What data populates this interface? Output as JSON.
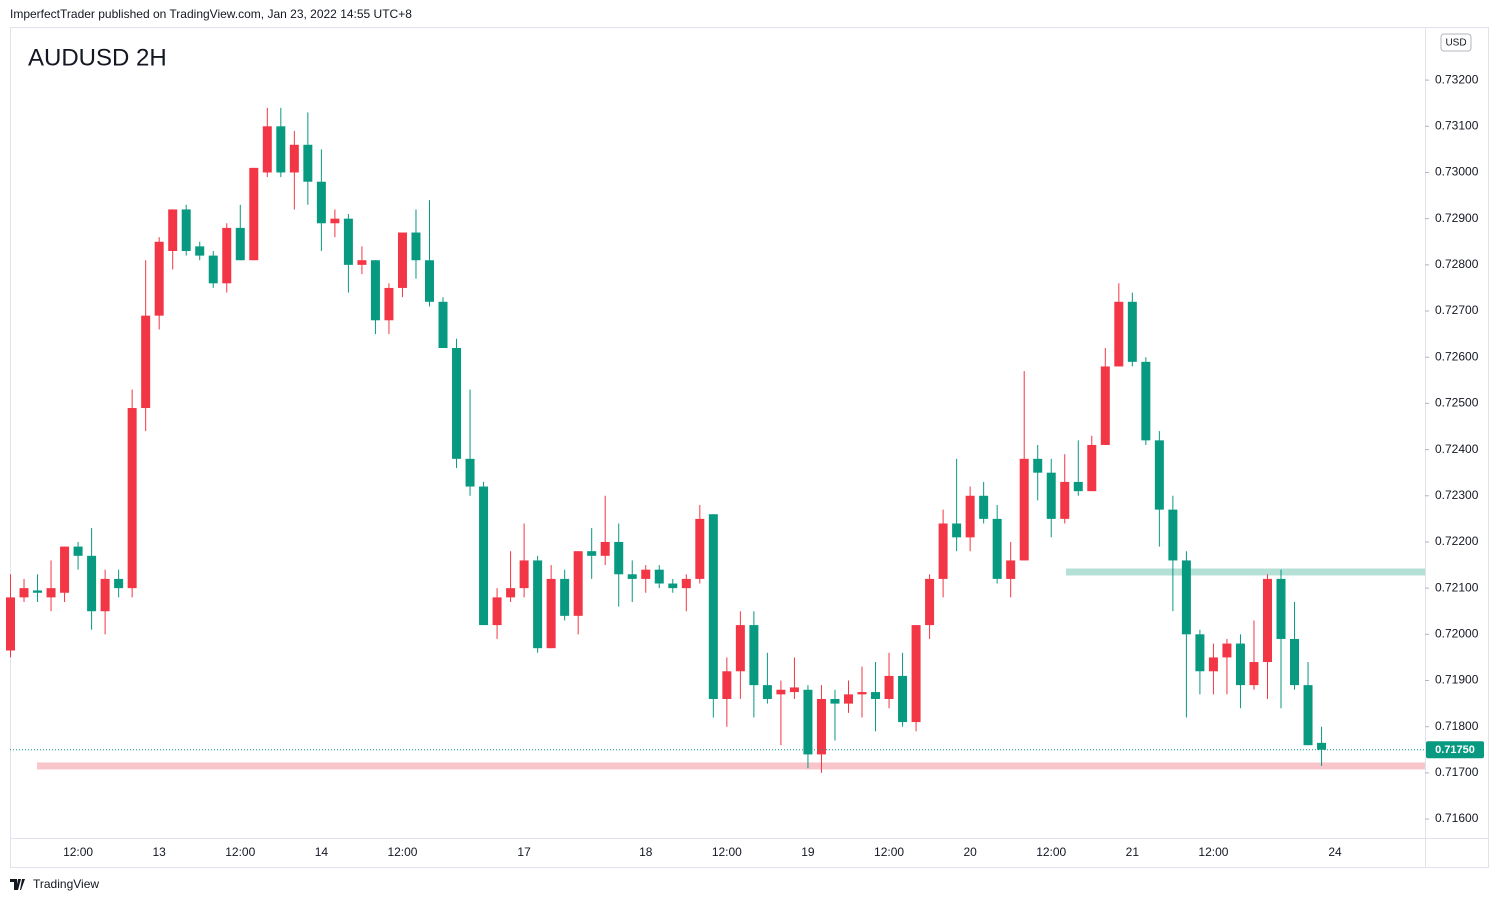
{
  "header": "ImperfectTrader published on TradingView.com, Jan 23, 2022 14:55 UTC+8",
  "brand": "TradingView",
  "chart_data": {
    "type": "candlestick",
    "title": "AUDUSD 2H",
    "currency": "USD",
    "up_color": "#f23645",
    "down_color": "#089981",
    "categories": [
      null,
      null,
      null,
      null,
      null,
      "12:00",
      null,
      null,
      null,
      null,
      null,
      "13",
      null,
      null,
      null,
      null,
      null,
      "12:00",
      null,
      null,
      null,
      null,
      null,
      "14",
      null,
      null,
      null,
      null,
      null,
      "12:00",
      null,
      null,
      null,
      null,
      null,
      null,
      null,
      null,
      "17",
      null,
      null,
      null,
      null,
      null,
      null,
      null,
      null,
      "18",
      null,
      null,
      null,
      null,
      null,
      "12:00",
      null,
      null,
      null,
      null,
      null,
      "19",
      null,
      null,
      null,
      null,
      null,
      "12:00",
      null,
      null,
      null,
      null,
      null,
      "20",
      null,
      null,
      null,
      null,
      null,
      "12:00",
      null,
      null,
      null,
      null,
      null,
      "21",
      null,
      null,
      null,
      null,
      null,
      "12:00",
      null,
      null,
      null,
      null,
      null,
      null,
      null,
      null,
      "24"
    ],
    "open": [
      0.71965,
      0.7208,
      0.72095,
      0.7208,
      0.7209,
      0.7219,
      0.7217,
      0.7205,
      0.7212,
      0.721,
      0.7249,
      0.7269,
      0.7283,
      0.7292,
      0.7284,
      0.7282,
      0.7276,
      0.7288,
      0.7281,
      0.73,
      0.731,
      0.73,
      0.7306,
      0.7298,
      0.7289,
      0.729,
      0.728,
      0.7281,
      0.7268,
      0.7275,
      0.7287,
      0.7281,
      0.7272,
      0.7262,
      0.7238,
      0.7232,
      0.7202,
      0.7208,
      0.721,
      0.7216,
      0.7197,
      0.7212,
      0.7204,
      0.7218,
      0.7217,
      0.722,
      0.7213,
      0.7212,
      0.7214,
      0.7211,
      0.721,
      0.7212,
      0.7226,
      0.7186,
      0.7192,
      0.7202,
      0.7189,
      0.7187,
      0.71875,
      0.7188,
      0.7174,
      0.7186,
      0.7185,
      0.7187,
      0.71875,
      0.7186,
      0.7191,
      0.7181,
      0.7202,
      0.7212,
      0.7224,
      0.7221,
      0.723,
      0.7225,
      0.7212,
      0.7216,
      0.7238,
      0.7235,
      0.7225,
      0.7233,
      0.7231,
      0.7241,
      0.7258,
      0.7272,
      0.7259,
      0.7242,
      0.7227,
      0.7216,
      0.72,
      0.7192,
      0.7195,
      0.7198,
      0.7189,
      0.7194,
      0.7212,
      0.7199,
      0.7189,
      0.71765,
      null
    ],
    "high": [
      0.7213,
      0.7212,
      0.7213,
      0.7216,
      0.7219,
      0.722,
      0.7223,
      0.7214,
      0.7214,
      0.7253,
      0.7281,
      0.7286,
      0.7292,
      0.7293,
      0.7285,
      0.7283,
      0.7289,
      0.7293,
      0.7301,
      0.7314,
      0.7314,
      0.7309,
      0.7313,
      0.7305,
      0.7292,
      0.7291,
      0.7284,
      0.7281,
      0.7276,
      0.7287,
      0.7292,
      0.7294,
      0.7273,
      0.7264,
      0.7253,
      0.7233,
      0.721,
      0.7218,
      0.7224,
      0.7217,
      0.7215,
      0.7214,
      0.7218,
      0.7223,
      0.723,
      0.7224,
      0.7216,
      0.7215,
      0.7215,
      0.7212,
      0.7213,
      0.7228,
      0.7226,
      0.7195,
      0.7205,
      0.7205,
      0.7196,
      0.719,
      0.7195,
      0.7189,
      0.7189,
      0.7188,
      0.719,
      0.7193,
      0.7194,
      0.7196,
      0.7196,
      0.7202,
      0.7213,
      0.7227,
      0.7238,
      0.7232,
      0.7233,
      0.7228,
      0.722,
      0.7257,
      0.7241,
      0.7238,
      0.7239,
      0.7242,
      0.7243,
      0.7262,
      0.7276,
      0.7274,
      0.726,
      0.7244,
      0.723,
      0.7218,
      0.7201,
      0.7198,
      0.7199,
      0.72,
      0.7203,
      0.7213,
      0.7214,
      0.7207,
      0.7194,
      0.718,
      null
    ],
    "low": [
      0.7195,
      0.7207,
      0.7207,
      0.7205,
      0.7207,
      0.7214,
      0.7201,
      0.72,
      0.7208,
      0.7208,
      0.7244,
      0.7266,
      0.7279,
      0.7282,
      0.7281,
      0.7275,
      0.7274,
      0.7281,
      0.7281,
      0.7299,
      0.7299,
      0.7292,
      0.7293,
      0.7283,
      0.7286,
      0.7274,
      0.7278,
      0.7265,
      0.7265,
      0.7273,
      0.7277,
      0.7271,
      0.7262,
      0.7236,
      0.723,
      0.7202,
      0.7199,
      0.7207,
      0.7208,
      0.7196,
      0.7197,
      0.7203,
      0.72,
      0.7212,
      0.7215,
      0.7206,
      0.7207,
      0.7209,
      0.721,
      0.7209,
      0.7205,
      0.7211,
      0.7182,
      0.718,
      0.7186,
      0.7182,
      0.7185,
      0.7176,
      0.7186,
      0.7171,
      0.717,
      0.7177,
      0.7183,
      0.7182,
      0.7179,
      0.7184,
      0.718,
      0.7179,
      0.7199,
      0.7208,
      0.7218,
      0.7218,
      0.7224,
      0.7211,
      0.7208,
      0.7216,
      0.7229,
      0.7221,
      0.7224,
      0.723,
      0.7231,
      0.7241,
      0.7258,
      0.7258,
      0.7241,
      0.7219,
      0.7205,
      0.7182,
      0.7187,
      0.7187,
      0.7187,
      0.7184,
      0.7188,
      0.7186,
      0.7184,
      0.7188,
      0.7176,
      0.71715,
      null
    ],
    "close": [
      0.7208,
      0.721,
      0.7209,
      0.721,
      0.7219,
      0.7217,
      0.7205,
      0.7212,
      0.721,
      0.7249,
      0.7269,
      0.7285,
      0.7292,
      0.7283,
      0.7282,
      0.7276,
      0.7288,
      0.7281,
      0.7301,
      0.731,
      0.73,
      0.7306,
      0.7298,
      0.7289,
      0.729,
      0.728,
      0.7281,
      0.7268,
      0.7275,
      0.7287,
      0.7281,
      0.7272,
      0.7262,
      0.7238,
      0.7232,
      0.7202,
      0.7208,
      0.721,
      0.7216,
      0.7197,
      0.7212,
      0.7204,
      0.7218,
      0.7217,
      0.722,
      0.7213,
      0.7212,
      0.7214,
      0.7211,
      0.721,
      0.7212,
      0.7225,
      0.7186,
      0.7192,
      0.7202,
      0.7189,
      0.7186,
      0.7188,
      0.71885,
      0.7174,
      0.7186,
      0.7185,
      0.7187,
      0.71875,
      0.7186,
      0.7191,
      0.7181,
      0.7202,
      0.7212,
      0.7224,
      0.7221,
      0.723,
      0.7225,
      0.7212,
      0.7216,
      0.7238,
      0.7235,
      0.7225,
      0.7233,
      0.7231,
      0.7241,
      0.7258,
      0.7272,
      0.7259,
      0.7242,
      0.7227,
      0.7216,
      0.72,
      0.7192,
      0.7195,
      0.7198,
      0.7189,
      0.7194,
      0.7212,
      0.7199,
      0.7189,
      0.7176,
      0.7175,
      null
    ],
    "ylim": [
      0.71559,
      0.73315
    ],
    "yticks": [
      {
        "value": 0.716,
        "label": "0.71600"
      },
      {
        "value": 0.717,
        "label": "0.71700"
      },
      {
        "value": 0.718,
        "label": "0.71800"
      },
      {
        "value": 0.719,
        "label": "0.71900"
      },
      {
        "value": 0.72,
        "label": "0.72000"
      },
      {
        "value": 0.721,
        "label": "0.72100"
      },
      {
        "value": 0.722,
        "label": "0.72200"
      },
      {
        "value": 0.723,
        "label": "0.72300"
      },
      {
        "value": 0.724,
        "label": "0.72400"
      },
      {
        "value": 0.725,
        "label": "0.72500"
      },
      {
        "value": 0.726,
        "label": "0.72600"
      },
      {
        "value": 0.727,
        "label": "0.72700"
      },
      {
        "value": 0.728,
        "label": "0.72800"
      },
      {
        "value": 0.729,
        "label": "0.72900"
      },
      {
        "value": 0.73,
        "label": "0.73000"
      },
      {
        "value": 0.731,
        "label": "0.73100"
      },
      {
        "value": 0.732,
        "label": "0.73200"
      }
    ],
    "last_price": {
      "value": 0.7175,
      "label": "0.71750",
      "color": "#089981"
    },
    "zones": [
      {
        "value": 0.72135,
        "color": "#b4e0d5"
      },
      {
        "value": 0.71715,
        "color": "#f8c6ca"
      }
    ]
  }
}
